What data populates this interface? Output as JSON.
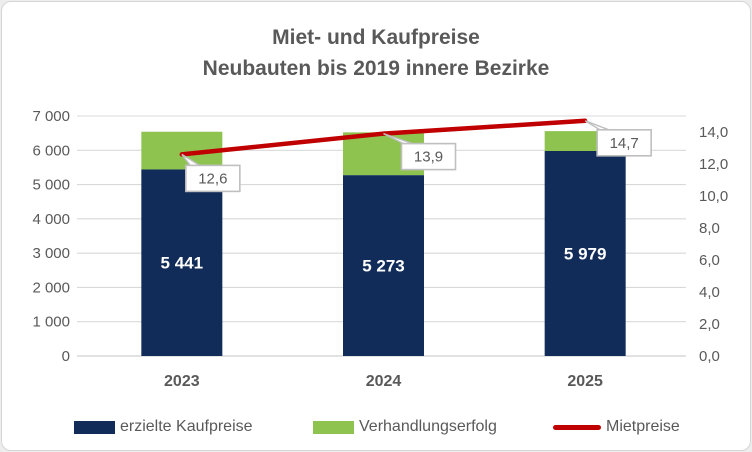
{
  "title": {
    "line1": "Miet- und Kaufpreise",
    "line2": "Neubauten bis 2019 innere Bezirke"
  },
  "chart_data": {
    "type": "combo-stacked-bar-line",
    "categories": [
      "2023",
      "2024",
      "2025"
    ],
    "series": [
      {
        "name": "erzielte Kaufpreise",
        "type": "bar",
        "axis": "left",
        "values": [
          5441,
          5273,
          5979
        ],
        "labels": [
          "5 441",
          "5 273",
          "5 979"
        ],
        "color": "#112c59"
      },
      {
        "name": "Verhandlungserfolg",
        "type": "bar",
        "axis": "left",
        "estimated": true,
        "values": [
          1100,
          1250,
          580
        ],
        "color": "#8ec350"
      },
      {
        "name": "Mietpreise",
        "type": "line",
        "axis": "right",
        "values": [
          12.6,
          13.9,
          14.7
        ],
        "labels": [
          "12,6",
          "13,9",
          "14,7"
        ],
        "color": "#c00000"
      }
    ],
    "left_axis": {
      "min": 0,
      "max": 7000,
      "step": 1000,
      "tick_labels": [
        "0",
        "1 000",
        "2 000",
        "3 000",
        "4 000",
        "5 000",
        "6 000",
        "7 000"
      ]
    },
    "right_axis": {
      "min": 0,
      "max": 15,
      "step": 2,
      "tick_labels": [
        "0,0",
        "2,0",
        "4,0",
        "6,0",
        "8,0",
        "10,0",
        "12,0",
        "14,0"
      ]
    },
    "grid": true,
    "gridline_color": "#d9d9d9",
    "legend_position": "bottom"
  },
  "legend": {
    "items": [
      {
        "label": "erzielte Kaufpreise",
        "swatch": "rect",
        "color": "#112c59"
      },
      {
        "label": "Verhandlungserfolg",
        "swatch": "rect",
        "color": "#8ec350"
      },
      {
        "label": "Mietpreise",
        "swatch": "line",
        "color": "#c00000"
      }
    ]
  }
}
